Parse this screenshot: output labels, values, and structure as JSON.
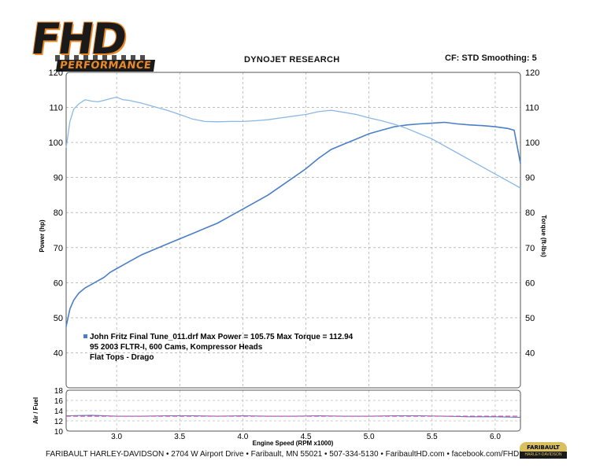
{
  "header": {
    "logo_main": "FHD",
    "logo_sub": "PERFORMANCE",
    "title": "DYNOJET RESEARCH",
    "settings": "CF: STD  Smoothing: 5"
  },
  "legend": {
    "line1": "John Fritz Final Tune_011.drf   Max Power = 105.75   Max Torque = 112.94",
    "line2": "95 2003 FLTR-I, 600 Cams, Kompressor Heads",
    "line3": "Flat Tops - Drago"
  },
  "footer": {
    "text": "FARIBAULT HARLEY-DAVIDSON • 2704 W Airport Drive • Faribault, MN 55021 • 507-334-5130 • FaribaultHD.com • facebook.com/FHDPerformance",
    "badge_top": "FARIBAULT",
    "badge_bottom": "HARLEY-DAVIDSON"
  },
  "colors": {
    "power": "#4a7fc8",
    "torque": "#8ab8e6",
    "afr": "#5577cc",
    "afr_target": "#d05090",
    "grid": "#999999"
  },
  "chart_data": [
    {
      "type": "line",
      "title": "DYNOJET RESEARCH",
      "xlabel": "Engine Speed (RPM x1000)",
      "ylabel": "Power (hp)",
      "y2label": "Torque (ft-lbs)",
      "xlim": [
        2.6,
        6.2
      ],
      "ylim": [
        30,
        120
      ],
      "y2lim": [
        30,
        120
      ],
      "xticks": [
        3.0,
        3.5,
        4.0,
        4.5,
        5.0,
        5.5,
        6.0
      ],
      "yticks": [
        40,
        50,
        60,
        70,
        80,
        90,
        100,
        110,
        120
      ],
      "grid": true,
      "legend": "center",
      "series": [
        {
          "name": "Power",
          "axis": "left",
          "x": [
            2.6,
            2.63,
            2.66,
            2.7,
            2.75,
            2.8,
            2.85,
            2.9,
            2.95,
            3.0,
            3.05,
            3.1,
            3.2,
            3.3,
            3.4,
            3.5,
            3.6,
            3.7,
            3.8,
            3.9,
            4.0,
            4.1,
            4.2,
            4.3,
            4.4,
            4.5,
            4.6,
            4.7,
            4.8,
            4.9,
            5.0,
            5.1,
            5.2,
            5.3,
            5.4,
            5.5,
            5.6,
            5.7,
            5.8,
            5.9,
            6.0,
            6.1,
            6.15,
            6.2
          ],
          "values": [
            47.5,
            52.5,
            55,
            57,
            58.5,
            59.5,
            60.5,
            61.5,
            63,
            64,
            65,
            66,
            68,
            69.5,
            71,
            72.5,
            74,
            75.5,
            77,
            79,
            81,
            83,
            85,
            87.5,
            90,
            92.5,
            95.5,
            98,
            99.5,
            101,
            102.5,
            103.5,
            104.5,
            105,
            105.3,
            105.5,
            105.75,
            105.3,
            105,
            104.8,
            104.5,
            104,
            103.5,
            94
          ]
        },
        {
          "name": "Torque",
          "axis": "right",
          "x": [
            2.6,
            2.63,
            2.66,
            2.7,
            2.75,
            2.8,
            2.85,
            2.9,
            2.95,
            3.0,
            3.05,
            3.1,
            3.2,
            3.3,
            3.4,
            3.5,
            3.6,
            3.7,
            3.8,
            3.9,
            4.0,
            4.1,
            4.2,
            4.3,
            4.4,
            4.5,
            4.6,
            4.7,
            4.8,
            4.9,
            5.0,
            5.1,
            5.2,
            5.3,
            5.4,
            5.5,
            5.6,
            5.7,
            5.8,
            5.9,
            6.0,
            6.1,
            6.15,
            6.2
          ],
          "values": [
            98.5,
            106,
            109.5,
            111,
            112.2,
            111.8,
            111.6,
            112,
            112.5,
            112.94,
            112.2,
            112,
            111.2,
            110.2,
            109.2,
            108,
            106.7,
            106,
            105.9,
            106,
            106,
            106.2,
            106.5,
            107,
            107.5,
            108,
            108.8,
            109.2,
            108.6,
            108,
            107,
            106.2,
            105.2,
            104,
            102.5,
            101,
            99,
            97,
            95,
            93,
            91,
            89,
            88,
            87
          ]
        }
      ]
    },
    {
      "type": "line",
      "ylabel": "Air / Fuel",
      "xlim": [
        2.6,
        6.2
      ],
      "ylim": [
        10,
        18
      ],
      "yticks": [
        10,
        12,
        14,
        16,
        18
      ],
      "grid": true,
      "series": [
        {
          "axis": "left",
          "x": [
            2.6,
            2.8,
            3.0,
            3.2,
            3.4,
            3.6,
            3.8,
            4.0,
            4.2,
            4.4,
            4.6,
            4.8,
            5.0,
            5.2,
            5.4,
            5.6,
            5.8,
            6.0,
            6.2
          ],
          "values": [
            13.0,
            13.1,
            12.9,
            12.9,
            13.0,
            13.0,
            12.9,
            13.0,
            12.9,
            12.9,
            13.0,
            12.9,
            12.9,
            13.0,
            13.0,
            12.9,
            12.8,
            12.8,
            12.7
          ]
        },
        {
          "axis": "left",
          "x": [
            2.6,
            6.2
          ],
          "values": [
            12.9,
            12.9
          ]
        }
      ]
    }
  ]
}
